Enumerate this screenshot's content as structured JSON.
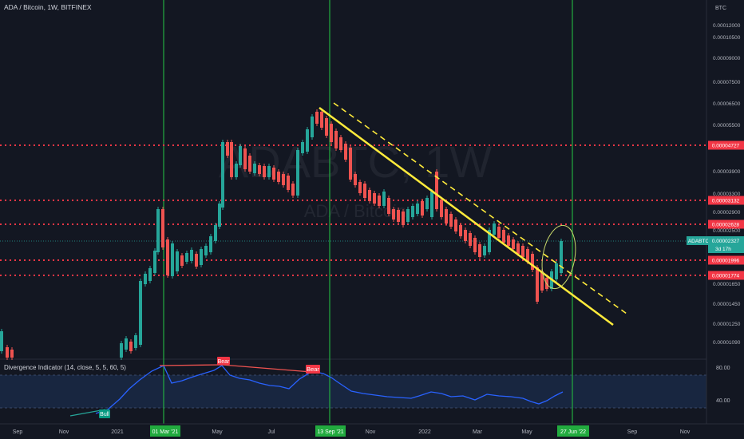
{
  "header": {
    "symbol_line": "ADA / Bitcoin, 1W, BITFINEX",
    "currency": "BTC"
  },
  "watermark": {
    "big": "ADABTC, 1W",
    "small": "ADA / Bitcoin"
  },
  "indicator": {
    "title": "Divergence Indicator (14, close, 5, 5, 60, 5)",
    "levels": [
      "80.00",
      "40.00"
    ],
    "labels": [
      {
        "text": "Bear",
        "color": "#f23645"
      },
      {
        "text": "Bear",
        "color": "#f23645"
      },
      {
        "text": "Bull",
        "color": "#089981"
      }
    ]
  },
  "price_axis": {
    "ticks": [
      "0.00012000",
      "0.00010500",
      "0.00009000",
      "0.00007500",
      "0.00006500",
      "0.00005500",
      "0.00004500",
      "0.00003900",
      "0.00003300",
      "0.00002900",
      "0.00002500",
      "0.00001650",
      "0.00001450",
      "0.00001250",
      "0.00001090"
    ],
    "level_labels": [
      "0.00004727",
      "0.00003132",
      "0.00002628",
      "0.00001996",
      "0.00001774"
    ],
    "current_tag": {
      "symbol": "ADABTC",
      "price": "0.00002327",
      "countdown": "3d 17h"
    }
  },
  "time_axis": {
    "ticks": [
      "Sep",
      "Nov",
      "2021",
      "Mar",
      "May",
      "Jul",
      "Sep",
      "Nov",
      "2022",
      "Mar",
      "May",
      "Jul",
      "Sep",
      "Nov"
    ],
    "highlight_labels": [
      "01 Mar '21",
      "13 Sep '21",
      "27 Jun '22"
    ]
  },
  "colors": {
    "bg": "#131722",
    "up": "#26a69a",
    "down": "#ef5350",
    "level_line": "#f23645",
    "trend_line": "#ffeb3b",
    "vertical_line": "#22ab3f",
    "indicator_line": "#2962ff",
    "indicator_band": "#1e3a66"
  },
  "chart_data": {
    "type": "candlestick",
    "timeframe": "1W",
    "horizontal_levels": [
      4.727e-05,
      3.132e-05,
      2.628e-05,
      1.996e-05,
      1.774e-05
    ],
    "current_price": 2.327e-05,
    "vertical_markers": [
      "01 Mar '21",
      "13 Sep '21",
      "27 Jun '22"
    ]
  }
}
